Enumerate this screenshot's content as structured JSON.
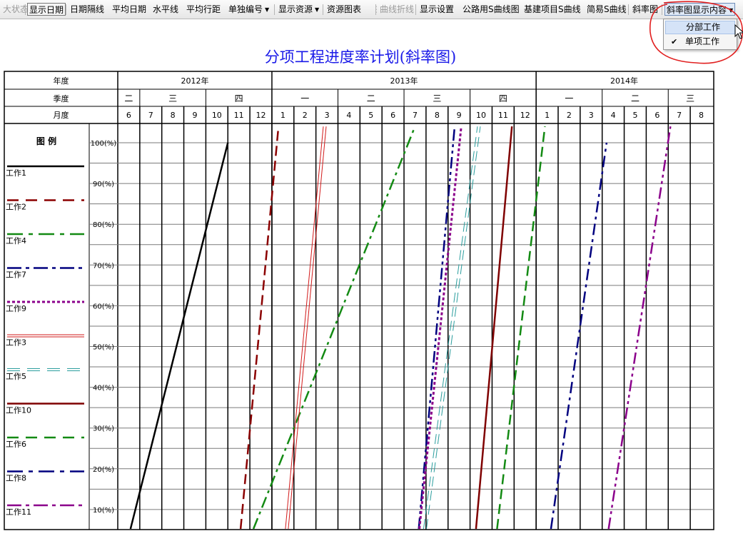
{
  "toolbar": {
    "items": [
      {
        "id": "status",
        "label": "大状态",
        "disabled": true
      },
      {
        "id": "show-date",
        "label": "显示日期",
        "pressed": true
      },
      {
        "id": "date-divider",
        "label": "日期隔线"
      },
      {
        "id": "avg-date",
        "label": "平均日期"
      },
      {
        "id": "horizontal-line",
        "label": "水平线"
      },
      {
        "id": "avg-row-spacing",
        "label": "平均行距"
      },
      {
        "id": "single-number",
        "label": "单独编号",
        "dropdown": true
      },
      {
        "id": "show-resources",
        "label": "显示资源",
        "dropdown": true
      },
      {
        "id": "resource-chart",
        "label": "资源图表"
      },
      {
        "id": "curve-polyline",
        "label": "曲线折线",
        "disabled": true
      },
      {
        "id": "display-settings",
        "label": "显示设置"
      },
      {
        "id": "highway-s-curve",
        "label": "公路用S曲线图"
      },
      {
        "id": "construction-s-curve",
        "label": "基建项目S曲线"
      },
      {
        "id": "simple-s-curve",
        "label": "简易S曲线"
      },
      {
        "id": "slope-chart",
        "label": "斜率图"
      },
      {
        "id": "slope-display-content",
        "label": "斜率图显示内容",
        "dropdown": true,
        "active": true
      }
    ]
  },
  "menu": {
    "items": [
      {
        "label": "分部工作",
        "checked": false,
        "hover": true
      },
      {
        "label": "单项工作",
        "checked": true,
        "hover": false
      }
    ]
  },
  "title": "分项工程进度率计划(斜率图)",
  "chart_data": {
    "type": "line",
    "header_labels": {
      "year": "年度",
      "quarter": "季度",
      "month": "月度"
    },
    "years": [
      {
        "label": "2012年",
        "months": 7
      },
      {
        "label": "2013年",
        "months": 12
      },
      {
        "label": "2014年",
        "months": 8
      }
    ],
    "quarters": [
      {
        "label": "二",
        "months": 1
      },
      {
        "label": "三",
        "months": 3
      },
      {
        "label": "四",
        "months": 3
      },
      {
        "label": "一",
        "months": 3
      },
      {
        "label": "二",
        "months": 3
      },
      {
        "label": "三",
        "months": 3
      },
      {
        "label": "四",
        "months": 3
      },
      {
        "label": "一",
        "months": 3
      },
      {
        "label": "二",
        "months": 3
      },
      {
        "label": "三",
        "months": 2
      }
    ],
    "months": [
      "6",
      "7",
      "8",
      "9",
      "10",
      "11",
      "12",
      "1",
      "2",
      "3",
      "4",
      "5",
      "6",
      "7",
      "8",
      "9",
      "10",
      "11",
      "12",
      "1",
      "2",
      "3",
      "4",
      "5",
      "6",
      "7",
      "8"
    ],
    "legend_title": "图 例",
    "y_labels": [
      "100(%)",
      "90(%)",
      "80(%)",
      "70(%)",
      "60(%)",
      "50(%)",
      "40(%)",
      "30(%)",
      "20(%)",
      "10(%)"
    ],
    "ylim": [
      0,
      104
    ],
    "x_unit": "month index (0 = start of 2012-06)",
    "series": [
      {
        "name": "工作1",
        "color": "#000000",
        "style": "solid",
        "start": [
          0.1,
          -5
        ],
        "end": [
          5.0,
          100
        ]
      },
      {
        "name": "工作2",
        "color": "#8b0000",
        "style": "dash",
        "start": [
          5.4,
          -5
        ],
        "end": [
          7.3,
          104
        ]
      },
      {
        "name": "工作4",
        "color": "#138a13",
        "style": "dashdot",
        "start": [
          5.4,
          -5
        ],
        "end": [
          13.5,
          104
        ]
      },
      {
        "name": "工作7",
        "color": "#00007f",
        "style": "dashdotdot",
        "start": [
          13.5,
          -5
        ],
        "end": [
          15.3,
          104
        ]
      },
      {
        "name": "工作9",
        "color": "#8b008b",
        "style": "dot",
        "start": [
          13.5,
          -5
        ],
        "end": [
          15.6,
          104
        ]
      },
      {
        "name": "工作3",
        "color": "#d21a1a",
        "style": "double",
        "start": [
          7.5,
          -5
        ],
        "end": [
          9.4,
          104
        ]
      },
      {
        "name": "工作5",
        "color": "#2a9d9d",
        "style": "doubledash",
        "start": [
          13.7,
          -5
        ],
        "end": [
          16.4,
          104
        ]
      },
      {
        "name": "工作10",
        "color": "#7f0000",
        "style": "solid",
        "start": [
          16.1,
          -5
        ],
        "end": [
          17.9,
          104
        ]
      },
      {
        "name": "工作6",
        "color": "#138a13",
        "style": "dash",
        "start": [
          17.0,
          -5
        ],
        "end": [
          19.4,
          104
        ]
      },
      {
        "name": "工作8",
        "color": "#00007f",
        "style": "dashdot",
        "start": [
          19.4,
          -5
        ],
        "end": [
          22.2,
          100
        ]
      },
      {
        "name": "工作11",
        "color": "#8b008b",
        "style": "dashdotdot",
        "start": [
          22.0,
          -5
        ],
        "end": [
          25.1,
          104
        ]
      }
    ]
  }
}
